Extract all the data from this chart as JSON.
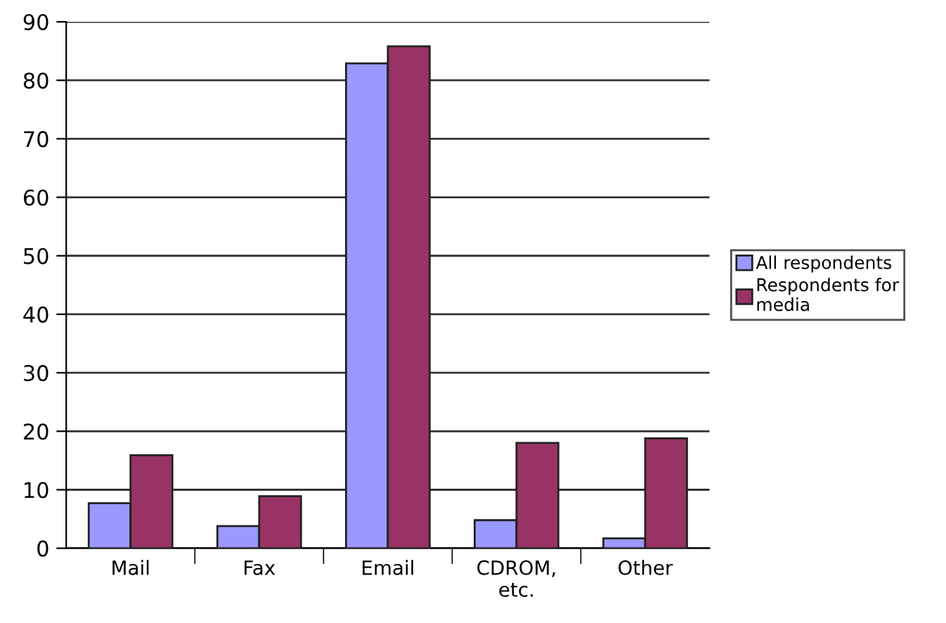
{
  "chart_data": {
    "type": "bar",
    "categories": [
      "Mail",
      "Fax",
      "Email",
      "CDROM,\netc.",
      "Other"
    ],
    "series": [
      {
        "name": "All respondents",
        "color": "#9999ff",
        "values": [
          7.7,
          3.8,
          82.9,
          4.8,
          1.7
        ]
      },
      {
        "name": "Respondents for\nmedia",
        "color": "#993366",
        "values": [
          15.9,
          8.9,
          85.8,
          18.0,
          18.8
        ]
      }
    ],
    "ylim": [
      0,
      90
    ],
    "yticks": [
      0,
      10,
      20,
      30,
      40,
      50,
      60,
      70,
      80,
      90
    ],
    "grid": "y",
    "legend": "right"
  }
}
